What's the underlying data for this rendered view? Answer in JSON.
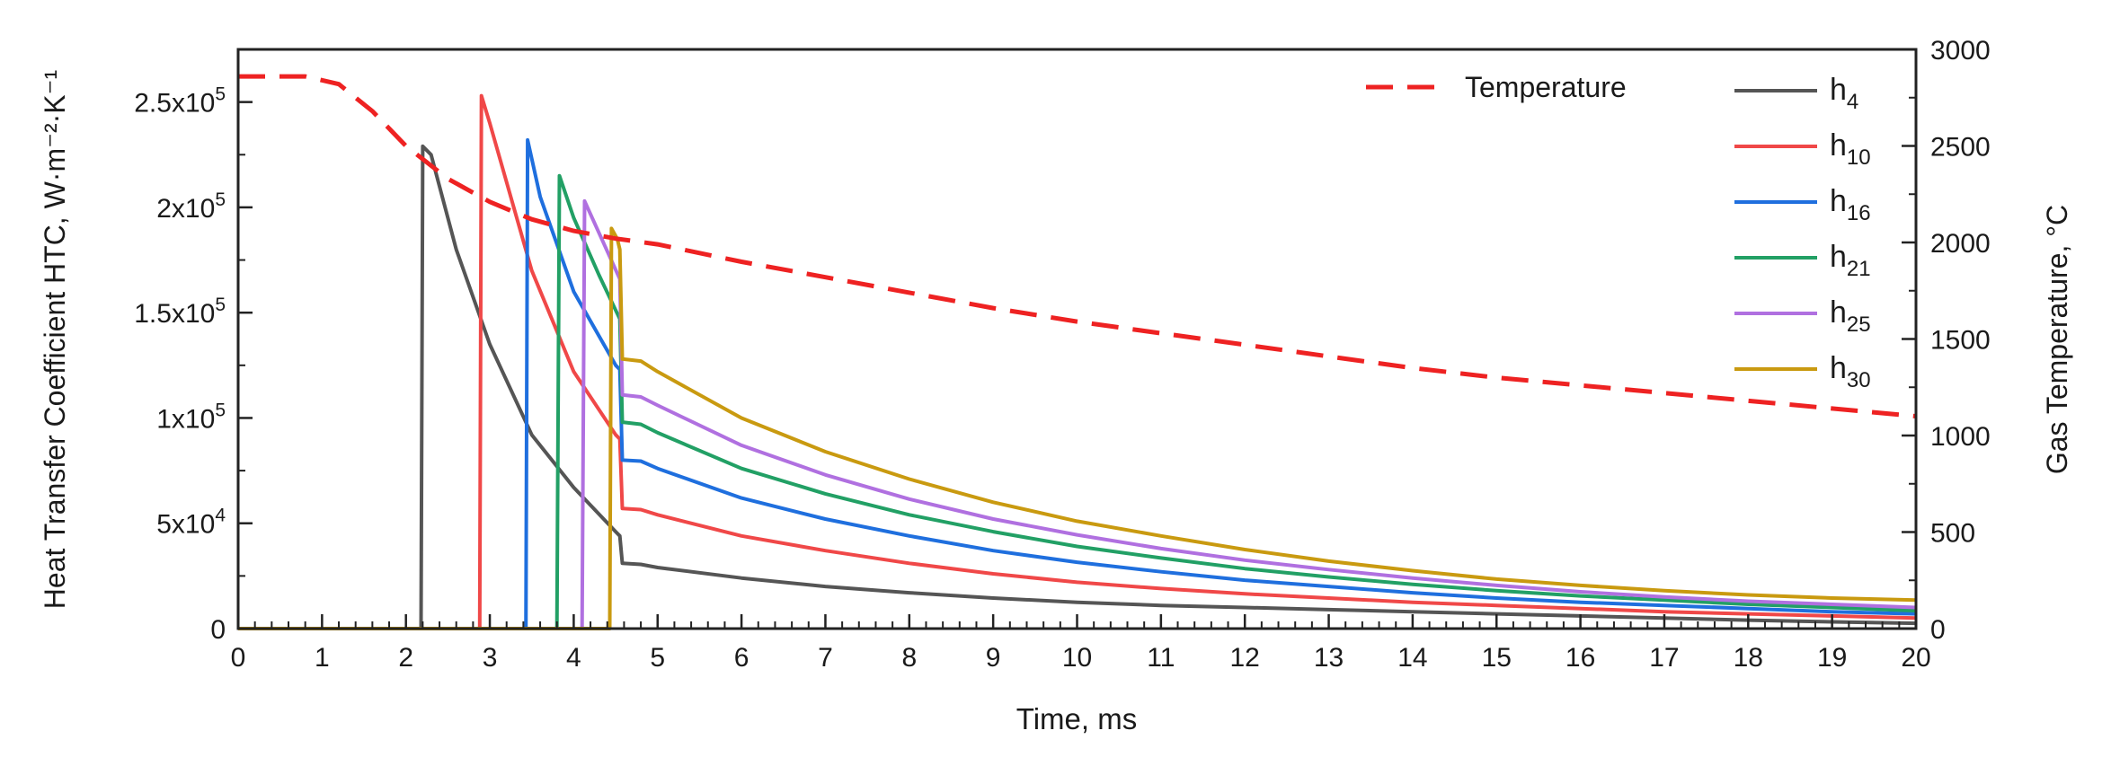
{
  "chart_data": {
    "type": "line",
    "xlabel": "Time, ms",
    "ylabel_left": "Heat Transfer Coefficient HTC, W·m⁻²·K⁻¹",
    "ylabel_right": "Gas Temperature, °C",
    "xlim": [
      0,
      20
    ],
    "ylim_left": [
      0,
      275000
    ],
    "ylim_right": [
      0,
      3000
    ],
    "x_ticks": [
      "0",
      "1",
      "2",
      "3",
      "4",
      "5",
      "6",
      "7",
      "8",
      "9",
      "10",
      "11",
      "12",
      "13",
      "14",
      "15",
      "16",
      "17",
      "18",
      "19",
      "20"
    ],
    "y_left_ticks": [
      {
        "value": 0,
        "base": "0",
        "exp": ""
      },
      {
        "value": 50000,
        "base": "5x10",
        "exp": "4"
      },
      {
        "value": 100000,
        "base": "1x10",
        "exp": "5"
      },
      {
        "value": 150000,
        "base": "1.5x10",
        "exp": "5"
      },
      {
        "value": 200000,
        "base": "2x10",
        "exp": "5"
      },
      {
        "value": 250000,
        "base": "2.5x10",
        "exp": "5"
      }
    ],
    "y_right_ticks": [
      "0",
      "500",
      "1000",
      "1500",
      "2000",
      "2500",
      "3000"
    ],
    "temperature": {
      "name": "Temperature",
      "color": "#ee2222",
      "axis": "right",
      "points": [
        [
          0,
          2860
        ],
        [
          0.8,
          2860
        ],
        [
          1.2,
          2820
        ],
        [
          1.6,
          2680
        ],
        [
          2.0,
          2500
        ],
        [
          2.5,
          2330
        ],
        [
          3.0,
          2210
        ],
        [
          3.5,
          2120
        ],
        [
          4.0,
          2060
        ],
        [
          4.5,
          2020
        ],
        [
          5.0,
          1990
        ],
        [
          6,
          1900
        ],
        [
          7,
          1820
        ],
        [
          8,
          1740
        ],
        [
          9,
          1660
        ],
        [
          10,
          1590
        ],
        [
          11,
          1530
        ],
        [
          12,
          1470
        ],
        [
          13,
          1410
        ],
        [
          14,
          1350
        ],
        [
          15,
          1300
        ],
        [
          16,
          1260
        ],
        [
          17,
          1220
        ],
        [
          18,
          1180
        ],
        [
          19,
          1140
        ],
        [
          20,
          1100
        ]
      ]
    },
    "htc_series": [
      {
        "name": "h",
        "sub": "4",
        "color": "#555555",
        "points": [
          [
            0,
            0
          ],
          [
            2.18,
            0
          ],
          [
            2.2,
            229000
          ],
          [
            2.3,
            225000
          ],
          [
            2.6,
            180000
          ],
          [
            3.0,
            135000
          ],
          [
            3.5,
            92000
          ],
          [
            4.0,
            67000
          ],
          [
            4.5,
            46000
          ],
          [
            4.55,
            44000
          ],
          [
            4.58,
            31000
          ],
          [
            4.8,
            30500
          ],
          [
            5,
            29000
          ],
          [
            6,
            24000
          ],
          [
            7,
            20000
          ],
          [
            8,
            17000
          ],
          [
            9,
            14500
          ],
          [
            10,
            12500
          ],
          [
            11,
            11000
          ],
          [
            12,
            10000
          ],
          [
            13,
            9000
          ],
          [
            14,
            8000
          ],
          [
            15,
            7000
          ],
          [
            16,
            6000
          ],
          [
            17,
            5000
          ],
          [
            18,
            4000
          ],
          [
            19,
            3200
          ],
          [
            20,
            2500
          ]
        ]
      },
      {
        "name": "h",
        "sub": "10",
        "color": "#f04848",
        "points": [
          [
            0,
            0
          ],
          [
            2.88,
            0
          ],
          [
            2.9,
            253000
          ],
          [
            3.0,
            240000
          ],
          [
            3.5,
            170000
          ],
          [
            4.0,
            122000
          ],
          [
            4.5,
            92000
          ],
          [
            4.55,
            90000
          ],
          [
            4.58,
            57000
          ],
          [
            4.8,
            56500
          ],
          [
            5,
            54000
          ],
          [
            6,
            44000
          ],
          [
            7,
            37000
          ],
          [
            8,
            31000
          ],
          [
            9,
            26000
          ],
          [
            10,
            22000
          ],
          [
            11,
            19000
          ],
          [
            12,
            16500
          ],
          [
            13,
            14500
          ],
          [
            14,
            12500
          ],
          [
            15,
            11000
          ],
          [
            16,
            9500
          ],
          [
            17,
            8000
          ],
          [
            18,
            7000
          ],
          [
            19,
            6000
          ],
          [
            20,
            5000
          ]
        ]
      },
      {
        "name": "h",
        "sub": "16",
        "color": "#1f6fde",
        "points": [
          [
            0,
            0
          ],
          [
            3.43,
            0
          ],
          [
            3.45,
            232000
          ],
          [
            3.6,
            205000
          ],
          [
            4.0,
            160000
          ],
          [
            4.5,
            125000
          ],
          [
            4.55,
            123000
          ],
          [
            4.58,
            80000
          ],
          [
            4.8,
            79500
          ],
          [
            5,
            76000
          ],
          [
            6,
            62000
          ],
          [
            7,
            52000
          ],
          [
            8,
            44000
          ],
          [
            9,
            37000
          ],
          [
            10,
            31500
          ],
          [
            11,
            27000
          ],
          [
            12,
            23000
          ],
          [
            13,
            20000
          ],
          [
            14,
            17000
          ],
          [
            15,
            14500
          ],
          [
            16,
            12500
          ],
          [
            17,
            11000
          ],
          [
            18,
            9500
          ],
          [
            19,
            8000
          ],
          [
            20,
            7000
          ]
        ]
      },
      {
        "name": "h",
        "sub": "21",
        "color": "#22a065",
        "points": [
          [
            0,
            0
          ],
          [
            3.8,
            0
          ],
          [
            3.83,
            215000
          ],
          [
            4.0,
            195000
          ],
          [
            4.3,
            168000
          ],
          [
            4.55,
            147000
          ],
          [
            4.58,
            98000
          ],
          [
            4.8,
            97000
          ],
          [
            5,
            93000
          ],
          [
            6,
            76000
          ],
          [
            7,
            64000
          ],
          [
            8,
            54000
          ],
          [
            9,
            46000
          ],
          [
            10,
            39000
          ],
          [
            11,
            33500
          ],
          [
            12,
            28500
          ],
          [
            13,
            24500
          ],
          [
            14,
            21000
          ],
          [
            15,
            18000
          ],
          [
            16,
            15500
          ],
          [
            17,
            13500
          ],
          [
            18,
            11500
          ],
          [
            19,
            10000
          ],
          [
            20,
            8500
          ]
        ]
      },
      {
        "name": "h",
        "sub": "25",
        "color": "#b070e0",
        "points": [
          [
            0,
            0
          ],
          [
            4.1,
            0
          ],
          [
            4.13,
            203000
          ],
          [
            4.3,
            188000
          ],
          [
            4.55,
            166000
          ],
          [
            4.58,
            111000
          ],
          [
            4.8,
            110000
          ],
          [
            5,
            106000
          ],
          [
            6,
            87000
          ],
          [
            7,
            73000
          ],
          [
            8,
            61500
          ],
          [
            9,
            52000
          ],
          [
            10,
            44500
          ],
          [
            11,
            38000
          ],
          [
            12,
            32500
          ],
          [
            13,
            28000
          ],
          [
            14,
            24000
          ],
          [
            15,
            20500
          ],
          [
            16,
            17500
          ],
          [
            17,
            15000
          ],
          [
            18,
            13000
          ],
          [
            19,
            11500
          ],
          [
            20,
            10000
          ]
        ]
      },
      {
        "name": "h",
        "sub": "30",
        "color": "#c99a10",
        "points": [
          [
            0,
            0
          ],
          [
            4.43,
            0
          ],
          [
            4.45,
            190000
          ],
          [
            4.52,
            185000
          ],
          [
            4.55,
            180000
          ],
          [
            4.58,
            128000
          ],
          [
            4.8,
            127000
          ],
          [
            5,
            122000
          ],
          [
            6,
            100000
          ],
          [
            7,
            84000
          ],
          [
            8,
            71000
          ],
          [
            9,
            60000
          ],
          [
            10,
            51000
          ],
          [
            11,
            44000
          ],
          [
            12,
            37500
          ],
          [
            13,
            32000
          ],
          [
            14,
            27500
          ],
          [
            15,
            23500
          ],
          [
            16,
            20500
          ],
          [
            17,
            18000
          ],
          [
            18,
            16000
          ],
          [
            19,
            14500
          ],
          [
            20,
            13500
          ]
        ]
      }
    ]
  }
}
